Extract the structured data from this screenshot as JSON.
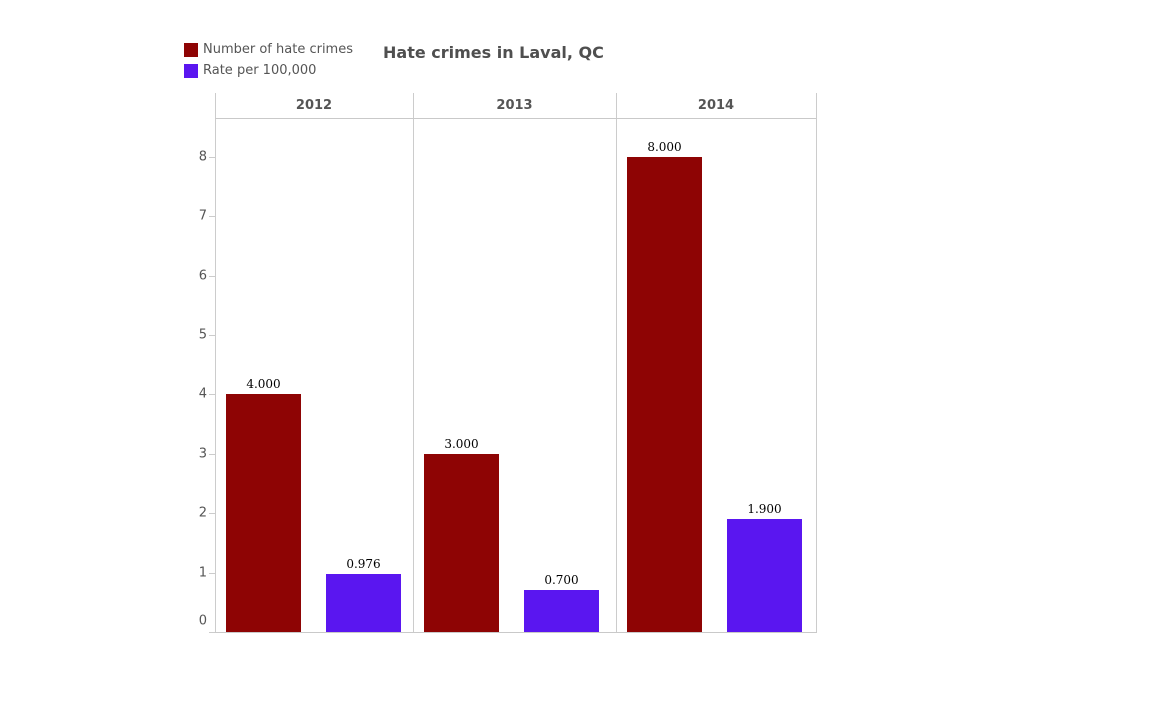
{
  "title": "Hate crimes in Laval, QC",
  "legend": {
    "position": "top-left",
    "items": [
      {
        "label": "Number of hate crimes",
        "color": "#8e0404"
      },
      {
        "label": "Rate per 100,000",
        "color": "#5a16f0"
      }
    ]
  },
  "chart_data": {
    "type": "bar",
    "title": "Hate crimes in Laval, QC",
    "categories": [
      "2012",
      "2013",
      "2014"
    ],
    "series": [
      {
        "name": "Number of hate crimes",
        "color": "#8e0404",
        "values": [
          4.0,
          3.0,
          8.0
        ],
        "value_labels": [
          "4.000",
          "3.000",
          "8.000"
        ]
      },
      {
        "name": "Rate per 100,000",
        "color": "#5a16f0",
        "values": [
          0.976,
          0.7,
          1.9
        ],
        "value_labels": [
          "0.976",
          "0.700",
          "1.900"
        ]
      }
    ],
    "xlabel": "",
    "ylabel": "",
    "y_ticks": [
      0,
      1,
      2,
      3,
      4,
      5,
      6,
      7,
      8
    ],
    "ylim": [
      0,
      8.7
    ],
    "grid": "off",
    "legend_position": "top-left",
    "value_labels_shown": true
  },
  "colors": {
    "background": "#ffffff",
    "axis_line": "#cccccc",
    "tick_text": "#555555",
    "header_text": "#555555",
    "title_text": "#4f4f4f",
    "value_label_text": "#000000"
  }
}
